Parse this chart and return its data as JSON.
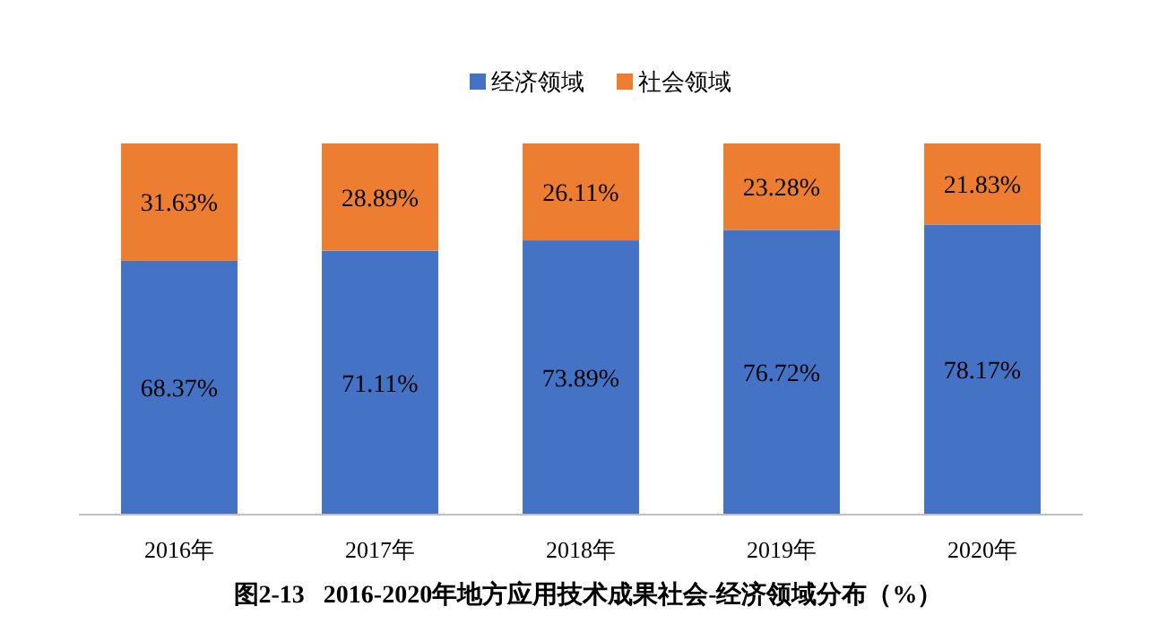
{
  "chart_data": {
    "type": "bar",
    "stacked": true,
    "legend": "top",
    "title": "图2-13   2016-2020年地方应用技术成果社会-经济领域分布（%）",
    "categories": [
      "2016年",
      "2017年",
      "2018年",
      "2019年",
      "2020年"
    ],
    "series": [
      {
        "name": "经济领域",
        "color": "#4472c4",
        "values": [
          68.37,
          71.11,
          73.89,
          76.72,
          78.17
        ],
        "value_labels": [
          "68.37%",
          "71.11%",
          "73.89%",
          "76.72%",
          "78.17%"
        ]
      },
      {
        "name": "社会领域",
        "color": "#ed7d31",
        "values": [
          31.63,
          28.89,
          26.11,
          23.28,
          21.83
        ],
        "value_labels": [
          "31.63%",
          "28.89%",
          "26.11%",
          "23.28%",
          "21.83%"
        ]
      }
    ]
  }
}
